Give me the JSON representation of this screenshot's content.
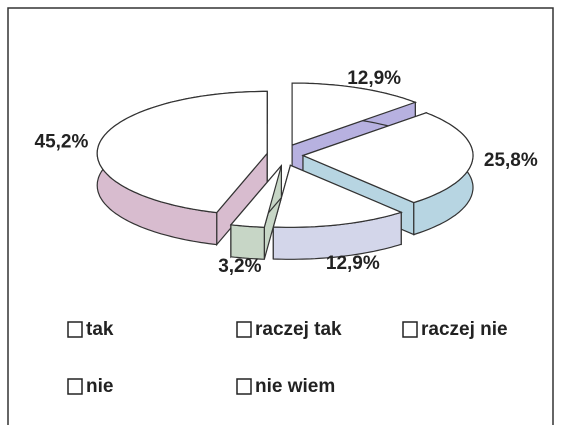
{
  "chart_data": {
    "type": "pie",
    "categories": [
      "tak",
      "raczej tak",
      "raczej nie",
      "nie",
      "nie wiem"
    ],
    "values": [
      12.9,
      25.8,
      12.9,
      3.2,
      45.2
    ],
    "value_labels": [
      "12,9%",
      "25,8%",
      "12,9%",
      "3,2%",
      "45,2%"
    ],
    "colors": [
      "#b7b1e0",
      "#b7d5e2",
      "#d3d6ea",
      "#c7d6c6",
      "#d8bccf"
    ]
  }
}
